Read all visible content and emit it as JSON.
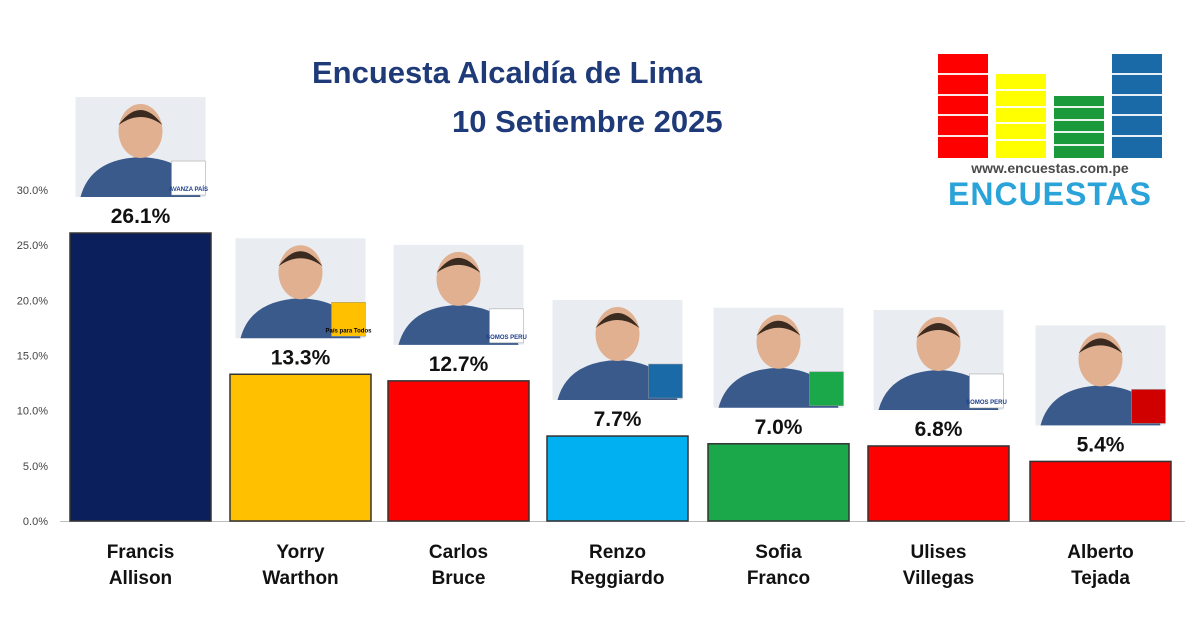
{
  "header": {
    "title_line1": "Encuesta Alcaldía de Lima",
    "title_line2": "10 Setiembre 2025"
  },
  "logo": {
    "url": "www.encuestas.com.pe",
    "name": "ENCUESTAS",
    "bar_colors": [
      "#ff0000",
      "#ffff00",
      "#1a9a3a",
      "#1a6aa8"
    ]
  },
  "party_logos": {
    "allison": "AVANZA PAÍS",
    "warthon": "País para Todos",
    "bruce": "SOMOS PERU",
    "villegas": "SOMOS PERU"
  },
  "chart_data": {
    "type": "bar",
    "title": "Encuesta Alcaldía de Lima",
    "subtitle": "10 Setiembre 2025",
    "categories": [
      "Francis Allison",
      "Yorry Warthon",
      "Carlos Bruce",
      "Renzo Reggiardo",
      "Sofia Franco",
      "Ulises Villegas",
      "Alberto Tejada"
    ],
    "category_lines": [
      [
        "Francis",
        "Allison"
      ],
      [
        "Yorry",
        "Warthon"
      ],
      [
        "Carlos",
        "Bruce"
      ],
      [
        "Renzo",
        "Reggiardo"
      ],
      [
        "Sofia",
        "Franco"
      ],
      [
        "Ulises",
        "Villegas"
      ],
      [
        "Alberto",
        "Tejada"
      ]
    ],
    "values": [
      26.1,
      13.3,
      12.7,
      7.7,
      7.0,
      6.8,
      5.4
    ],
    "value_labels": [
      "26.1%",
      "13.3%",
      "12.7%",
      "7.7%",
      "7.0%",
      "6.8%",
      "5.4%"
    ],
    "colors": [
      "#0b1f5c",
      "#ffc000",
      "#ff0000",
      "#00b0f0",
      "#1aa84a",
      "#ff0000",
      "#ff0000"
    ],
    "ylim": [
      0,
      30
    ],
    "yticks": [
      "0.0%",
      "5.0%",
      "10.0%",
      "15.0%",
      "20.0%",
      "25.0%",
      "30.0%"
    ],
    "grid": false,
    "legend": "none"
  }
}
